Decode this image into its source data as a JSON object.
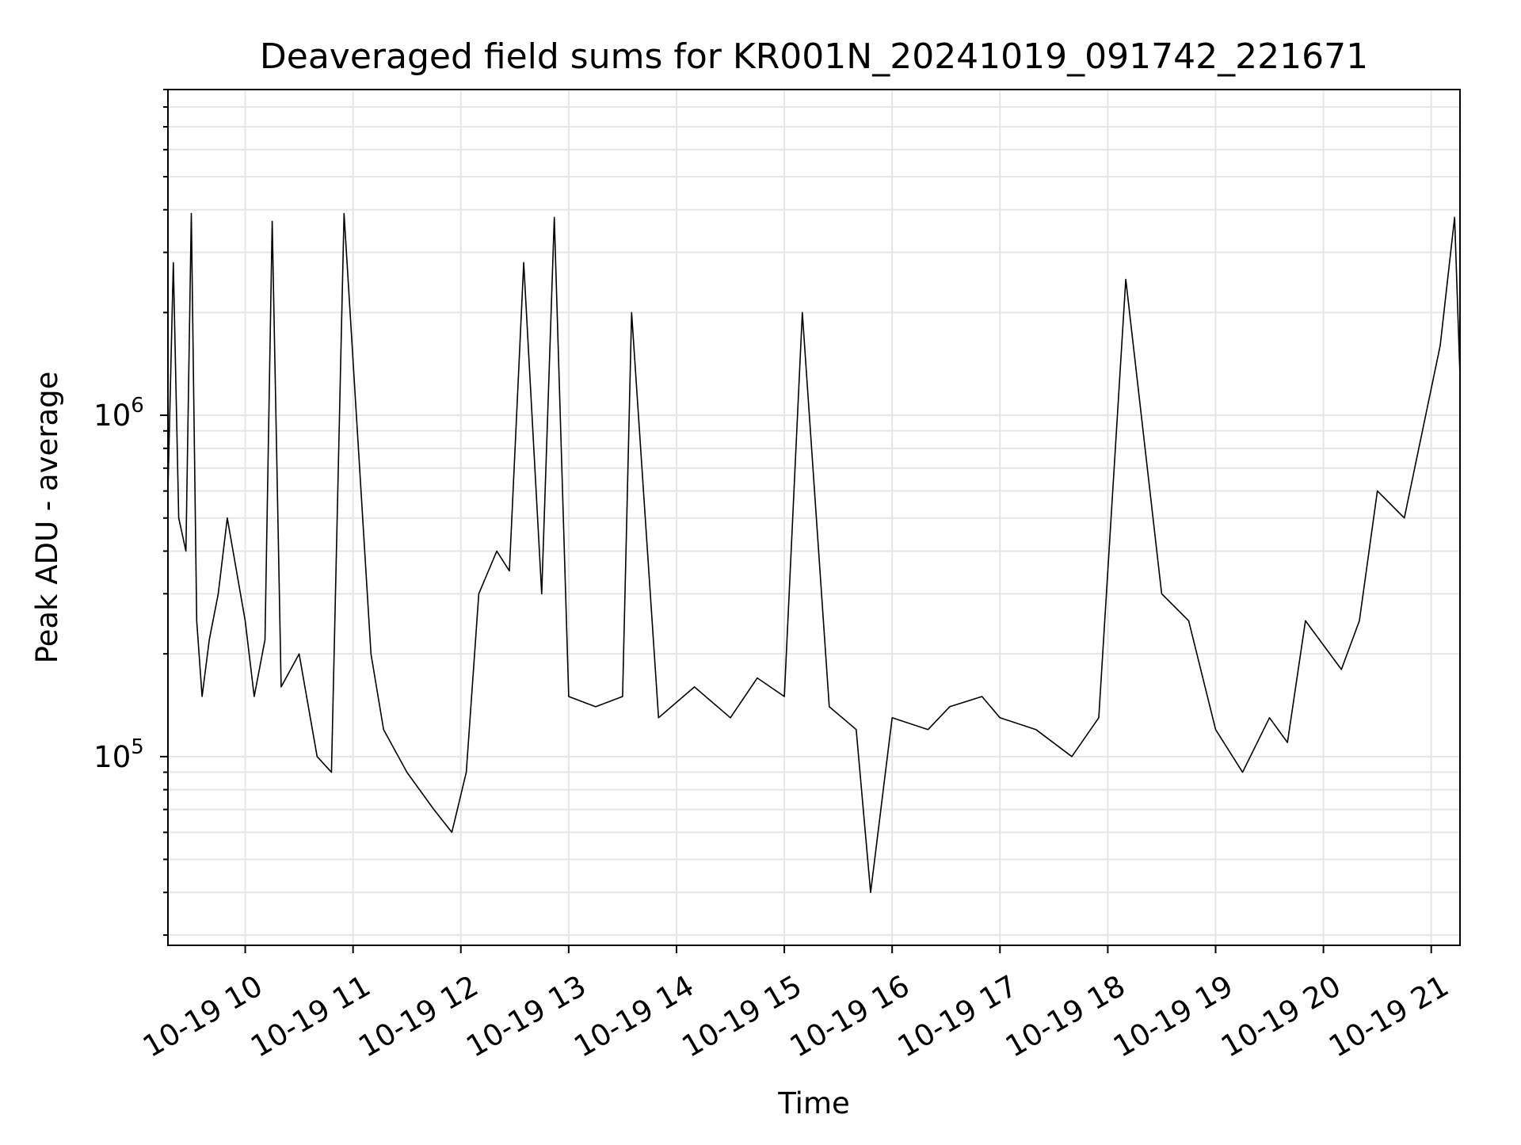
{
  "chart_data": {
    "type": "line",
    "title": "Deaveraged field sums for KR001N_20241019_091742_221671",
    "xlabel": "Time",
    "ylabel": "Peak ADU - average",
    "yscale": "log",
    "xlim": [
      "2024-10-19 09:17",
      "2024-10-19 21:16"
    ],
    "ylim": [
      28000,
      9000000
    ],
    "grid": true,
    "x_tick_labels": [
      "10-19 10",
      "10-19 11",
      "10-19 12",
      "10-19 13",
      "10-19 14",
      "10-19 15",
      "10-19 16",
      "10-19 17",
      "10-19 18",
      "10-19 19",
      "10-19 20",
      "10-19 21"
    ],
    "y_tick_labels": [
      {
        "value": 100000,
        "base": "10",
        "exp": "5"
      },
      {
        "value": 1000000,
        "base": "10",
        "exp": "6"
      }
    ],
    "series": [
      {
        "color": "#000000",
        "x": [
          "2024-10-19 09:17",
          "2024-10-19 09:20",
          "2024-10-19 09:23",
          "2024-10-19 09:27",
          "2024-10-19 09:30",
          "2024-10-19 09:33",
          "2024-10-19 09:36",
          "2024-10-19 09:40",
          "2024-10-19 09:45",
          "2024-10-19 09:50",
          "2024-10-19 10:00",
          "2024-10-19 10:05",
          "2024-10-19 10:11",
          "2024-10-19 10:15",
          "2024-10-19 10:20",
          "2024-10-19 10:30",
          "2024-10-19 10:40",
          "2024-10-19 10:48",
          "2024-10-19 10:55",
          "2024-10-19 11:10",
          "2024-10-19 11:17",
          "2024-10-19 11:30",
          "2024-10-19 11:45",
          "2024-10-19 11:55",
          "2024-10-19 12:03",
          "2024-10-19 12:10",
          "2024-10-19 12:20",
          "2024-10-19 12:27",
          "2024-10-19 12:35",
          "2024-10-19 12:45",
          "2024-10-19 12:52",
          "2024-10-19 13:00",
          "2024-10-19 13:15",
          "2024-10-19 13:30",
          "2024-10-19 13:35",
          "2024-10-19 13:50",
          "2024-10-19 14:10",
          "2024-10-19 14:30",
          "2024-10-19 14:45",
          "2024-10-19 15:00",
          "2024-10-19 15:10",
          "2024-10-19 15:25",
          "2024-10-19 15:40",
          "2024-10-19 15:48",
          "2024-10-19 16:00",
          "2024-10-19 16:20",
          "2024-10-19 16:32",
          "2024-10-19 16:50",
          "2024-10-19 17:00",
          "2024-10-19 17:20",
          "2024-10-19 17:40",
          "2024-10-19 17:55",
          "2024-10-19 18:10",
          "2024-10-19 18:30",
          "2024-10-19 18:45",
          "2024-10-19 19:00",
          "2024-10-19 19:15",
          "2024-10-19 19:30",
          "2024-10-19 19:40",
          "2024-10-19 19:50",
          "2024-10-19 20:10",
          "2024-10-19 20:20",
          "2024-10-19 20:30",
          "2024-10-19 20:45",
          "2024-10-19 21:05",
          "2024-10-19 21:13",
          "2024-10-19 21:16"
        ],
        "y": [
          600000,
          2800000,
          500000,
          400000,
          3900000,
          250000,
          150000,
          220000,
          300000,
          500000,
          250000,
          150000,
          220000,
          3700000,
          160000,
          200000,
          100000,
          90000,
          3900000,
          200000,
          120000,
          90000,
          70000,
          60000,
          90000,
          300000,
          400000,
          350000,
          2800000,
          300000,
          3800000,
          150000,
          140000,
          150000,
          2000000,
          130000,
          160000,
          130000,
          170000,
          150000,
          2000000,
          140000,
          120000,
          40000,
          130000,
          120000,
          140000,
          150000,
          130000,
          120000,
          100000,
          130000,
          2500000,
          300000,
          250000,
          120000,
          90000,
          130000,
          110000,
          250000,
          180000,
          250000,
          600000,
          500000,
          1600000,
          3800000,
          1300000
        ]
      }
    ]
  }
}
